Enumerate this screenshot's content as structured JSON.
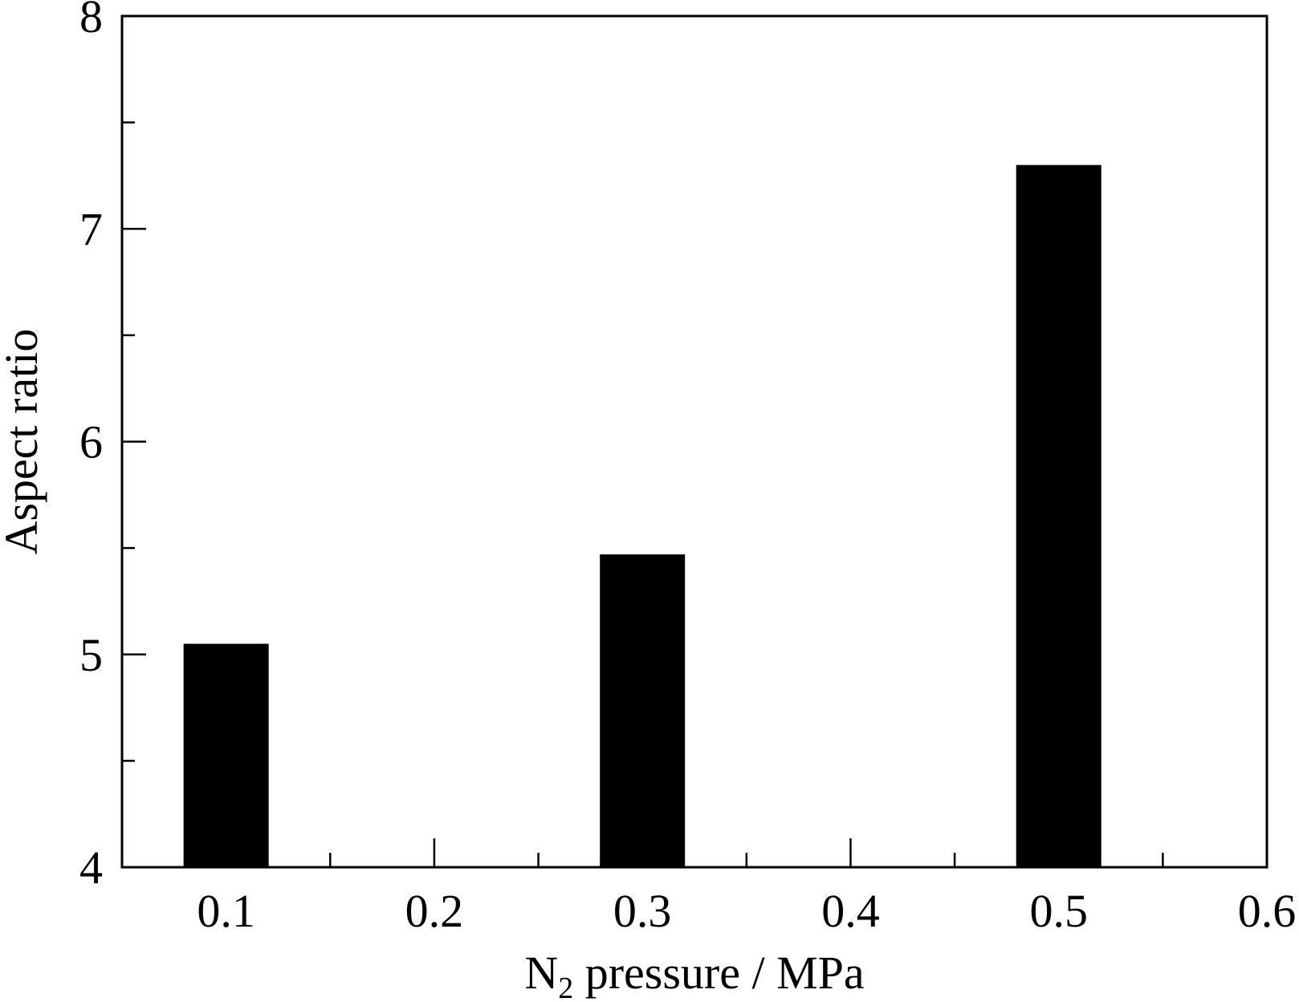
{
  "chart_data": {
    "type": "bar",
    "title": "",
    "xlabel": {
      "prefix": "N",
      "subscript": "2",
      "suffix": " pressure / MPa"
    },
    "ylabel": "Aspect ratio",
    "x": [
      0.1,
      0.3,
      0.5
    ],
    "values": [
      5.05,
      5.47,
      7.3
    ],
    "xlim": [
      0.05,
      0.6
    ],
    "ylim": [
      4,
      8
    ],
    "xticks": [
      "0.1",
      "0.2",
      "0.3",
      "0.4",
      "0.5",
      "0.6"
    ],
    "yticks": [
      "4",
      "5",
      "6",
      "7",
      "8"
    ],
    "grid": false,
    "legend": "none",
    "bar_color": "#000000"
  }
}
